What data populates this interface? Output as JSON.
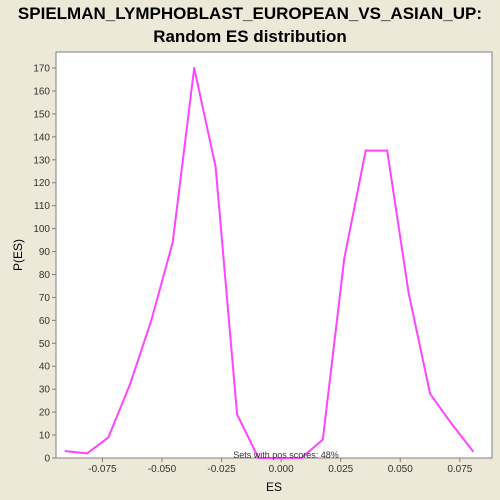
{
  "chart_data": {
    "type": "line",
    "title_line1": "SPIELMAN_LYMPHOBLAST_EUROPEAN_VS_ASIAN_UP:",
    "title_line2": "Random ES distribution",
    "xlabel": "ES",
    "ylabel": "P(ES)",
    "xlim": [
      -0.0945,
      0.0885
    ],
    "ylim": [
      0,
      177
    ],
    "x_ticks": [
      -0.075,
      -0.05,
      -0.025,
      0.0,
      0.025,
      0.05,
      0.075
    ],
    "x_tick_labels": [
      "-0.075",
      "-0.050",
      "-0.025",
      "0.000",
      "0.025",
      "0.050",
      "0.075"
    ],
    "y_ticks": [
      0,
      10,
      20,
      30,
      40,
      50,
      60,
      70,
      80,
      90,
      100,
      110,
      120,
      130,
      140,
      150,
      160,
      170
    ],
    "y_tick_labels": [
      "0",
      "10",
      "20",
      "30",
      "40",
      "50",
      "60",
      "70",
      "80",
      "90",
      "100",
      "110",
      "120",
      "130",
      "140",
      "150",
      "160",
      "170"
    ],
    "grid": false,
    "annotation": "Sets with pos scores: 48%",
    "series_color": "#ff44ff",
    "plot_background": "#ffffff",
    "x": [
      -0.0905,
      -0.0815,
      -0.0725,
      -0.0635,
      -0.0545,
      -0.0455,
      -0.0365,
      -0.0275,
      -0.0185,
      -0.0095,
      -0.0005,
      0.0085,
      0.0175,
      0.0265,
      0.0355,
      0.0445,
      0.0535,
      0.0625,
      0.0715,
      0.0805
    ],
    "y": [
      3,
      2,
      9,
      32,
      60,
      94,
      170,
      127,
      19,
      0,
      0,
      0,
      8,
      87,
      134,
      134,
      72,
      28,
      15,
      3
    ]
  }
}
